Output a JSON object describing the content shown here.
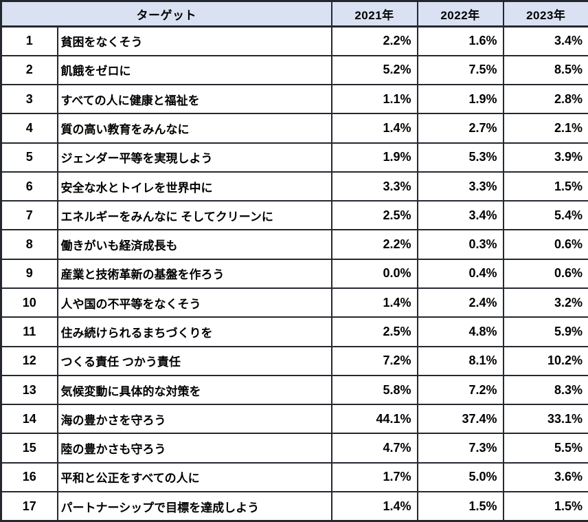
{
  "chart_data": {
    "type": "table",
    "title": "",
    "unit": "%",
    "header": {
      "target": "ターゲット",
      "years": [
        "2021年",
        "2022年",
        "2023年"
      ]
    },
    "rows": [
      {
        "no": "1",
        "label": "貧困をなくそう",
        "values": [
          2.2,
          1.6,
          3.4
        ]
      },
      {
        "no": "2",
        "label": "飢餓をゼロに",
        "values": [
          5.2,
          7.5,
          8.5
        ]
      },
      {
        "no": "3",
        "label": "すべての人に健康と福祉を",
        "values": [
          1.1,
          1.9,
          2.8
        ]
      },
      {
        "no": "4",
        "label": "質の高い教育をみんなに",
        "values": [
          1.4,
          2.7,
          2.1
        ]
      },
      {
        "no": "5",
        "label": "ジェンダー平等を実現しよう",
        "values": [
          1.9,
          5.3,
          3.9
        ]
      },
      {
        "no": "6",
        "label": "安全な水とトイレを世界中に",
        "values": [
          3.3,
          3.3,
          1.5
        ]
      },
      {
        "no": "7",
        "label": "エネルギーをみんなに そしてクリーンに",
        "values": [
          2.5,
          3.4,
          5.4
        ]
      },
      {
        "no": "8",
        "label": "働きがいも経済成長も",
        "values": [
          2.2,
          0.3,
          0.6
        ]
      },
      {
        "no": "9",
        "label": "産業と技術革新の基盤を作ろう",
        "values": [
          0.0,
          0.4,
          0.6
        ]
      },
      {
        "no": "10",
        "label": "人や国の不平等をなくそう",
        "values": [
          1.4,
          2.4,
          3.2
        ]
      },
      {
        "no": "11",
        "label": "住み続けられるまちづくりを",
        "values": [
          2.5,
          4.8,
          5.9
        ]
      },
      {
        "no": "12",
        "label": "つくる責任 つかう責任",
        "values": [
          7.2,
          8.1,
          10.2
        ]
      },
      {
        "no": "13",
        "label": "気候変動に具体的な対策を",
        "values": [
          5.8,
          7.2,
          8.3
        ]
      },
      {
        "no": "14",
        "label": "海の豊かさを守ろう",
        "values": [
          44.1,
          37.4,
          33.1
        ]
      },
      {
        "no": "15",
        "label": "陸の豊かさも守ろう",
        "values": [
          4.7,
          7.3,
          5.5
        ]
      },
      {
        "no": "16",
        "label": "平和と公正をすべての人に",
        "values": [
          1.7,
          5.0,
          3.6
        ]
      },
      {
        "no": "17",
        "label": "パートナーシップで目標を達成しよう",
        "values": [
          1.4,
          1.5,
          1.5
        ]
      }
    ]
  },
  "colors": {
    "header_bg": "#d9e1f2",
    "border_color": "#24282e",
    "text_color": "#000000"
  }
}
